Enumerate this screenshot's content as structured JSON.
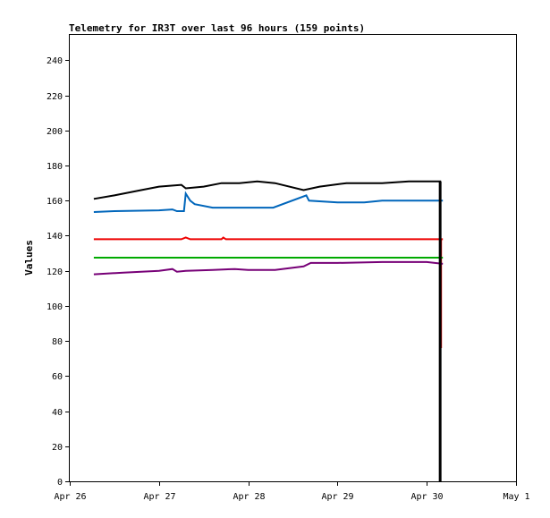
{
  "chart_data": {
    "type": "line",
    "title": "Telemetry for IR3T over last 96 hours (159 points)",
    "xlabel": "",
    "ylabel": "Values",
    "x_ticks": [
      "Apr 26",
      "Apr 27",
      "Apr 28",
      "Apr 29",
      "Apr 30",
      "May 1"
    ],
    "xlim": [
      0,
      5
    ],
    "ylim": [
      0,
      255
    ],
    "y_ticks": [
      0,
      20,
      40,
      60,
      80,
      100,
      120,
      140,
      160,
      180,
      200,
      220,
      240
    ],
    "grid": false,
    "legend": "none",
    "series": [
      {
        "color": "#000000",
        "points": [
          [
            0.27,
            161
          ],
          [
            0.5,
            163
          ],
          [
            0.8,
            166
          ],
          [
            1.0,
            168
          ],
          [
            1.25,
            169
          ],
          [
            1.3,
            167
          ],
          [
            1.5,
            168
          ],
          [
            1.7,
            170
          ],
          [
            1.9,
            170
          ],
          [
            2.1,
            171
          ],
          [
            2.3,
            170
          ],
          [
            2.62,
            166
          ],
          [
            2.8,
            168
          ],
          [
            3.1,
            170
          ],
          [
            3.5,
            170
          ],
          [
            3.8,
            171
          ],
          [
            4.0,
            171
          ],
          [
            4.15,
            171
          ],
          [
            4.15,
            0
          ]
        ]
      },
      {
        "color": "#0066bb",
        "points": [
          [
            0.27,
            153.5
          ],
          [
            0.5,
            154
          ],
          [
            1.0,
            154.5
          ],
          [
            1.15,
            155
          ],
          [
            1.2,
            154
          ],
          [
            1.28,
            154
          ],
          [
            1.3,
            164
          ],
          [
            1.35,
            160
          ],
          [
            1.4,
            158
          ],
          [
            1.6,
            156
          ],
          [
            2.0,
            156
          ],
          [
            2.28,
            156
          ],
          [
            2.65,
            163
          ],
          [
            2.68,
            160
          ],
          [
            3.0,
            159
          ],
          [
            3.3,
            159
          ],
          [
            3.5,
            160
          ],
          [
            4.0,
            160
          ],
          [
            4.18,
            160
          ]
        ]
      },
      {
        "color": "#ee0000",
        "points": [
          [
            0.27,
            138
          ],
          [
            1.25,
            138
          ],
          [
            1.3,
            139
          ],
          [
            1.35,
            138
          ],
          [
            1.7,
            138
          ],
          [
            1.72,
            139
          ],
          [
            1.75,
            138
          ],
          [
            4.18,
            138
          ],
          [
            4.16,
            138
          ],
          [
            4.16,
            76
          ]
        ]
      },
      {
        "color": "#00aa00",
        "points": [
          [
            0.27,
            127.5
          ],
          [
            4.18,
            127.5
          ]
        ]
      },
      {
        "color": "#770077",
        "points": [
          [
            0.27,
            118
          ],
          [
            0.6,
            119
          ],
          [
            1.0,
            120
          ],
          [
            1.15,
            121
          ],
          [
            1.2,
            119.5
          ],
          [
            1.3,
            120
          ],
          [
            1.6,
            120.5
          ],
          [
            1.85,
            121
          ],
          [
            2.0,
            120.5
          ],
          [
            2.3,
            120.5
          ],
          [
            2.62,
            122.5
          ],
          [
            2.7,
            124.5
          ],
          [
            3.0,
            124.5
          ],
          [
            3.5,
            125
          ],
          [
            4.0,
            125
          ],
          [
            4.18,
            124
          ]
        ]
      }
    ]
  }
}
